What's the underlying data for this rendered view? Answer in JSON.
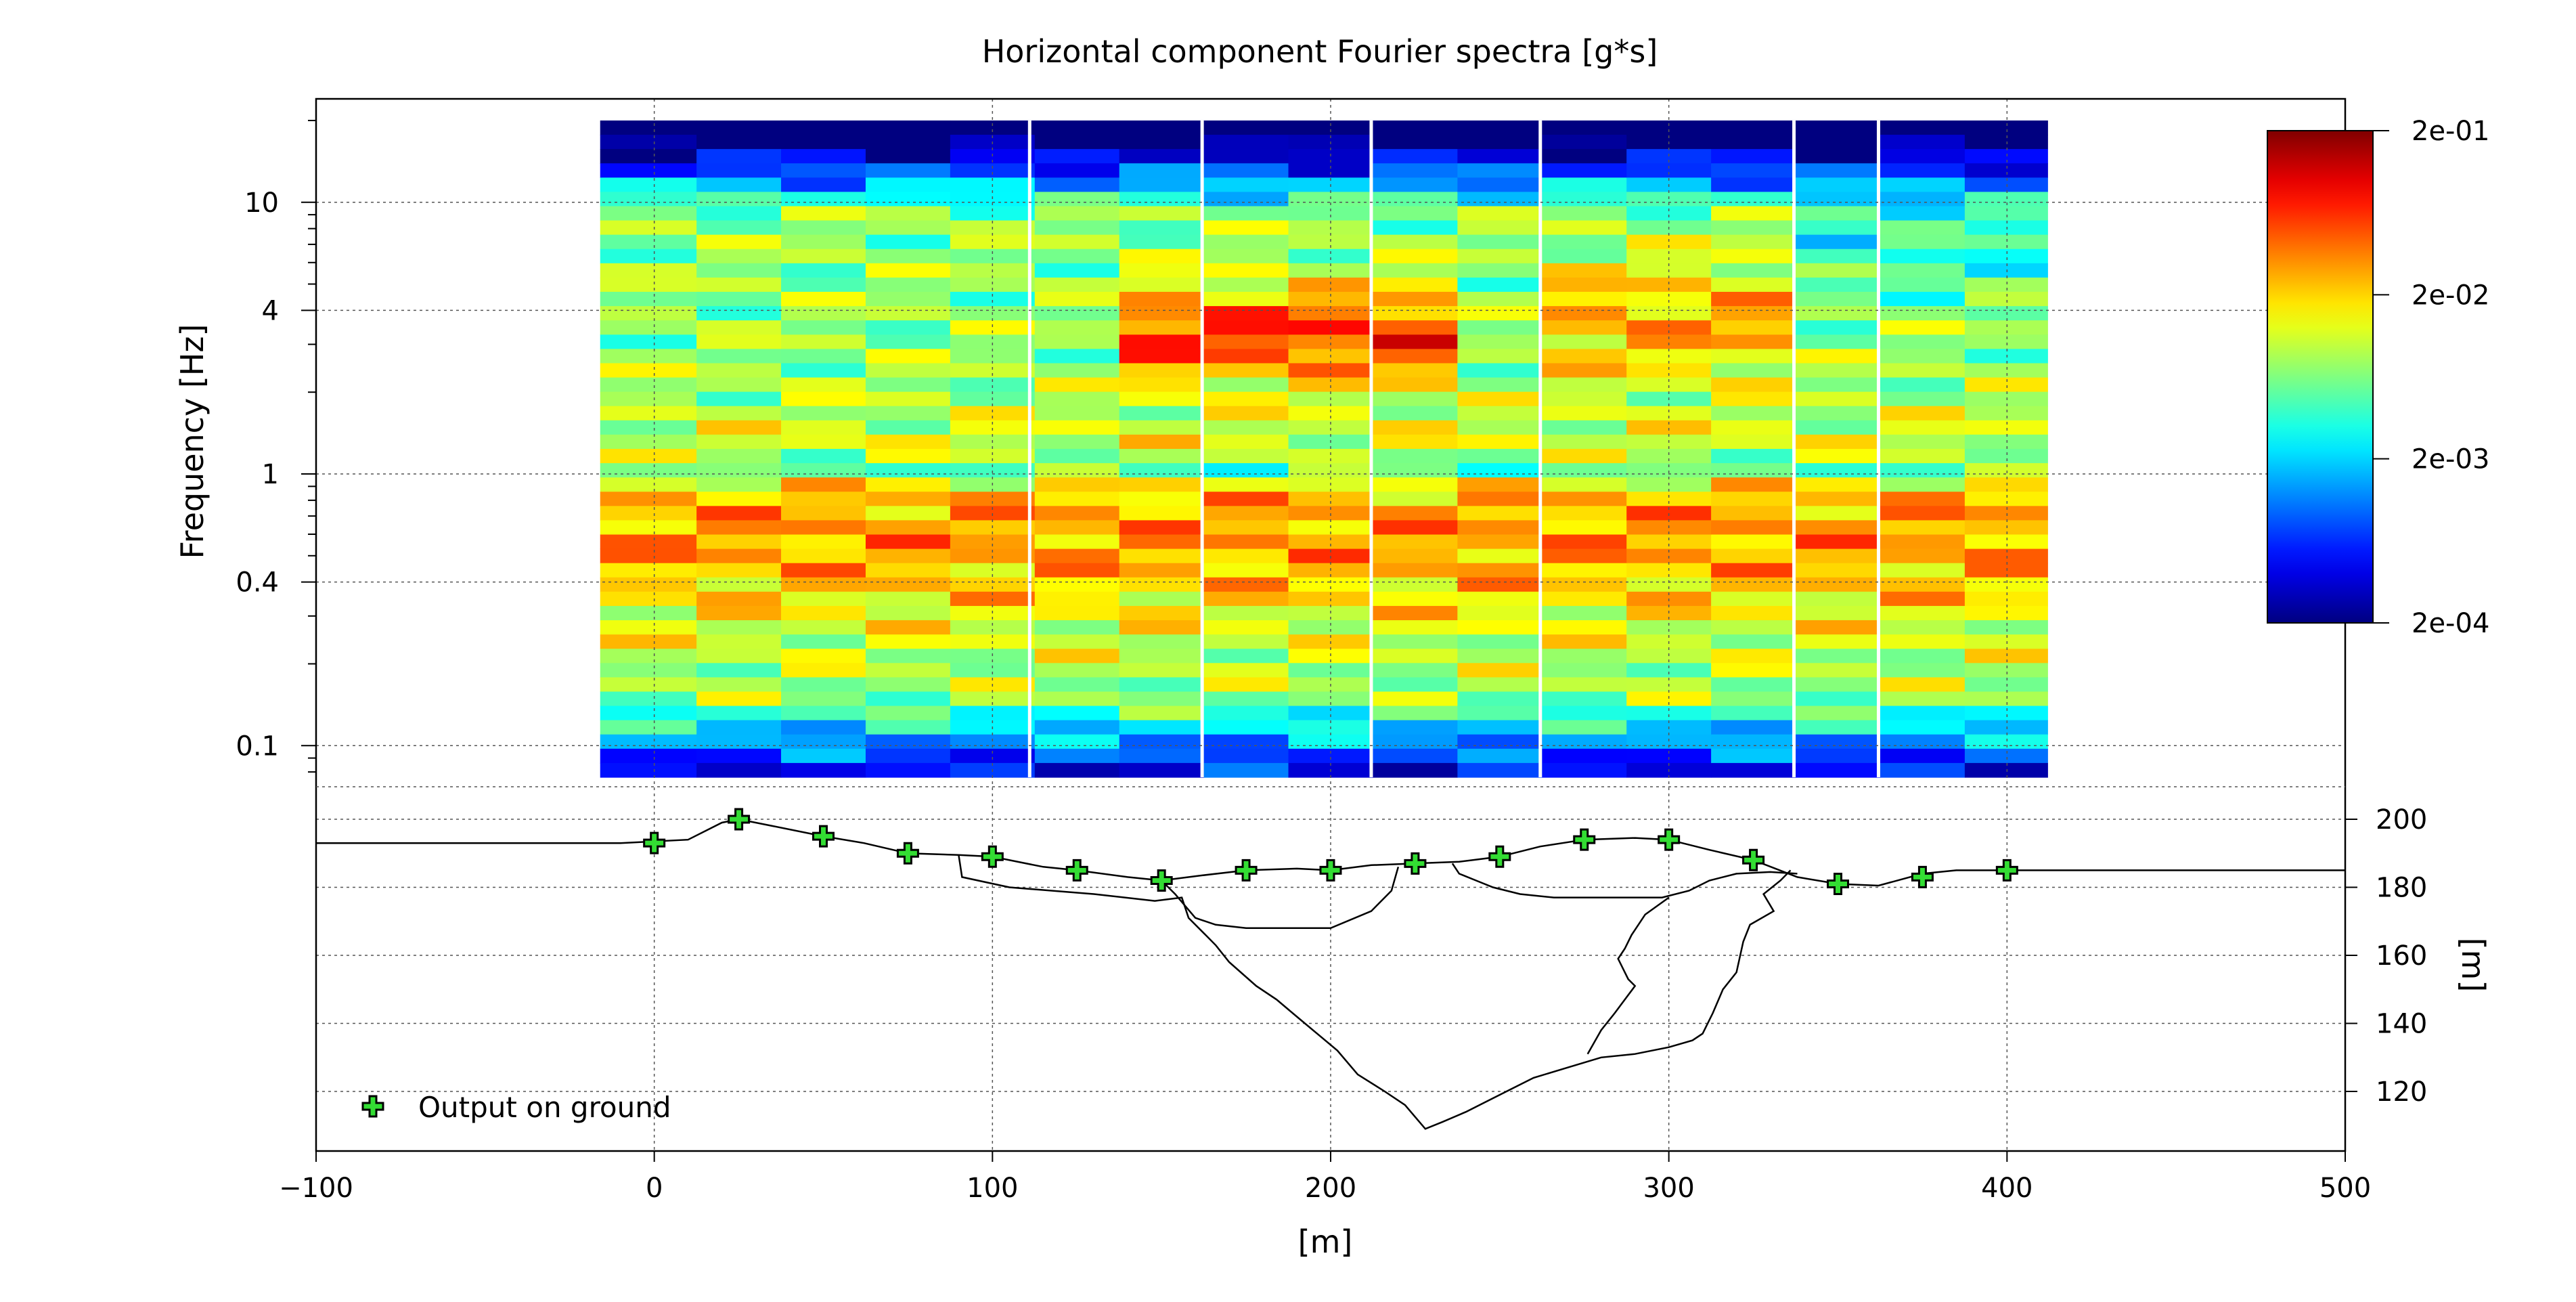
{
  "chart_data": {
    "type": "heatmap",
    "title": "Horizontal component Fourier spectra [g*s]",
    "ylabel": "Frequency [Hz]",
    "xlabel": "[m]",
    "y2label": "[m]",
    "x_ticks": [
      -100,
      0,
      100,
      200,
      300,
      400,
      500
    ],
    "x_tick_labels": [
      "−100",
      "0",
      "100",
      "200",
      "300",
      "400",
      "500"
    ],
    "xlim": [
      -100,
      500
    ],
    "freq_ticks": [
      {
        "value": 10,
        "label": "10"
      },
      {
        "value": 4,
        "label": "4"
      },
      {
        "value": 1,
        "label": "1"
      },
      {
        "value": 0.4,
        "label": "0.4"
      },
      {
        "value": 0.1,
        "label": "0.1"
      }
    ],
    "freq_range_hz": [
      0.07,
      20
    ],
    "freq_scale": "log",
    "elev_ticks": [
      200,
      180,
      160,
      140,
      120
    ],
    "elev_range_m": [
      102,
      210
    ],
    "colorbar": {
      "ticks": [
        "2e-01",
        "2e-02",
        "2e-03",
        "2e-04"
      ],
      "tick_values": [
        0.2,
        0.02,
        0.002,
        0.0002
      ],
      "scale": "log",
      "colormap": "jet"
    },
    "heatmap_x_range_m": [
      -16,
      412
    ],
    "station_columns_x_m": [
      0,
      25,
      50,
      75,
      100,
      125,
      150,
      175,
      200,
      225,
      250,
      275,
      300,
      325,
      350,
      375,
      400
    ],
    "grid": true,
    "legend": {
      "label": "Output on ground",
      "placement": "bottom-left"
    },
    "stations": [
      {
        "x": 0,
        "elev": 193
      },
      {
        "x": 25,
        "elev": 200
      },
      {
        "x": 50,
        "elev": 195
      },
      {
        "x": 75,
        "elev": 190
      },
      {
        "x": 100,
        "elev": 189
      },
      {
        "x": 125,
        "elev": 185
      },
      {
        "x": 150,
        "elev": 182
      },
      {
        "x": 175,
        "elev": 185
      },
      {
        "x": 200,
        "elev": 185
      },
      {
        "x": 225,
        "elev": 187
      },
      {
        "x": 250,
        "elev": 189
      },
      {
        "x": 275,
        "elev": 194
      },
      {
        "x": 300,
        "elev": 194
      },
      {
        "x": 325,
        "elev": 188
      },
      {
        "x": 350,
        "elev": 181
      },
      {
        "x": 375,
        "elev": 183
      },
      {
        "x": 400,
        "elev": 185
      }
    ],
    "ground_profile": [
      [
        -100,
        193
      ],
      [
        -50,
        193
      ],
      [
        -10,
        193
      ],
      [
        10,
        194
      ],
      [
        20,
        199
      ],
      [
        25,
        200
      ],
      [
        35,
        198
      ],
      [
        50,
        195
      ],
      [
        62,
        193
      ],
      [
        75,
        190
      ],
      [
        90,
        189.5
      ],
      [
        100,
        189
      ],
      [
        115,
        186
      ],
      [
        125,
        185
      ],
      [
        140,
        183
      ],
      [
        150,
        182
      ],
      [
        162,
        183.5
      ],
      [
        175,
        185
      ],
      [
        190,
        185.5
      ],
      [
        200,
        185
      ],
      [
        212,
        186.5
      ],
      [
        225,
        187
      ],
      [
        238,
        187.5
      ],
      [
        250,
        189
      ],
      [
        262,
        192
      ],
      [
        275,
        194
      ],
      [
        290,
        194.5
      ],
      [
        300,
        194
      ],
      [
        312,
        191
      ],
      [
        325,
        188
      ],
      [
        338,
        183
      ],
      [
        350,
        181
      ],
      [
        362,
        180.5
      ],
      [
        375,
        184
      ],
      [
        385,
        185
      ],
      [
        400,
        185
      ],
      [
        450,
        185
      ],
      [
        500,
        185
      ]
    ],
    "layer_boundaries": [
      [
        [
          90,
          189.5
        ],
        [
          91,
          183
        ],
        [
          105,
          180
        ],
        [
          130,
          178
        ],
        [
          148,
          176
        ],
        [
          156,
          177
        ],
        [
          158,
          171
        ],
        [
          163,
          166
        ],
        [
          166,
          163
        ],
        [
          170,
          158
        ],
        [
          178,
          151
        ],
        [
          184,
          147
        ],
        [
          190,
          142
        ],
        [
          196,
          137
        ],
        [
          202,
          132
        ],
        [
          208,
          125
        ],
        [
          216,
          120
        ],
        [
          222,
          116
        ],
        [
          228,
          109
        ],
        [
          233,
          111
        ],
        [
          240,
          114
        ],
        [
          246,
          117
        ],
        [
          252,
          120
        ],
        [
          260,
          124
        ],
        [
          270,
          127
        ],
        [
          280,
          130
        ],
        [
          290,
          131
        ],
        [
          300,
          133
        ],
        [
          307,
          135
        ],
        [
          310,
          137
        ],
        [
          313,
          143
        ],
        [
          316,
          150
        ],
        [
          320,
          155
        ],
        [
          322,
          164
        ],
        [
          324,
          169
        ],
        [
          331,
          173
        ],
        [
          328,
          178
        ],
        [
          333,
          182
        ],
        [
          336,
          185
        ]
      ],
      [
        [
          150,
          182
        ],
        [
          154,
          178
        ],
        [
          160,
          171
        ],
        [
          166,
          169
        ],
        [
          175,
          168
        ],
        [
          188,
          168
        ],
        [
          200,
          168
        ],
        [
          212,
          173
        ],
        [
          218,
          179
        ],
        [
          220,
          186
        ]
      ],
      [
        [
          236,
          187
        ],
        [
          238,
          184
        ],
        [
          243,
          182
        ],
        [
          248,
          180
        ],
        [
          256,
          178
        ],
        [
          266,
          177
        ],
        [
          276,
          177
        ],
        [
          288,
          177
        ],
        [
          298,
          177
        ],
        [
          306,
          179
        ],
        [
          312,
          182
        ],
        [
          320,
          184
        ],
        [
          330,
          184.5
        ],
        [
          338,
          184
        ]
      ],
      [
        [
          300,
          177
        ],
        [
          293,
          172
        ],
        [
          289,
          166
        ],
        [
          287,
          162
        ],
        [
          285,
          159
        ],
        [
          288,
          153
        ],
        [
          290,
          151
        ],
        [
          287,
          147
        ],
        [
          284,
          143
        ],
        [
          280,
          138
        ],
        [
          276,
          131
        ]
      ]
    ]
  }
}
